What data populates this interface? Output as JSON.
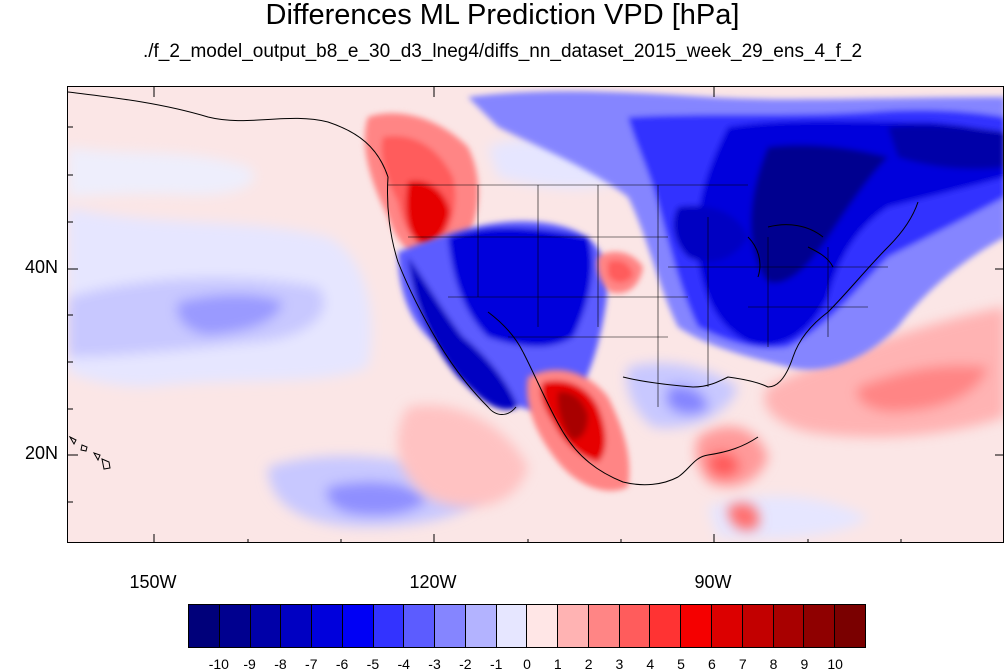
{
  "title": "Differences ML Prediction VPD [hPa]",
  "subtitle": "./f_2_model_output_b8_e_30_d3_lneg4/diffs_nn_dataset_2015_week_29_ens_4_f_2",
  "axes": {
    "lat_labels": [
      "40N",
      "20N"
    ],
    "lon_labels": [
      "150W",
      "120W",
      "90W"
    ]
  },
  "colorbar": {
    "labels": [
      "-10",
      "-9",
      "-8",
      "-7",
      "-6",
      "-5",
      "-4",
      "-3",
      "-2",
      "-1",
      "0",
      "1",
      "2",
      "3",
      "4",
      "5",
      "6",
      "7",
      "8",
      "9",
      "10"
    ],
    "colors": [
      "#00007a",
      "#00008f",
      "#0000a8",
      "#0000c2",
      "#0000dc",
      "#0000f5",
      "#3333ff",
      "#5c5cff",
      "#8585ff",
      "#b3b3ff",
      "#e6e6ff",
      "#ffe6e6",
      "#ffb3b3",
      "#ff8585",
      "#ff5c5c",
      "#ff3333",
      "#f50000",
      "#dc0000",
      "#c20000",
      "#a80000",
      "#8f0000",
      "#7a0000"
    ]
  }
}
